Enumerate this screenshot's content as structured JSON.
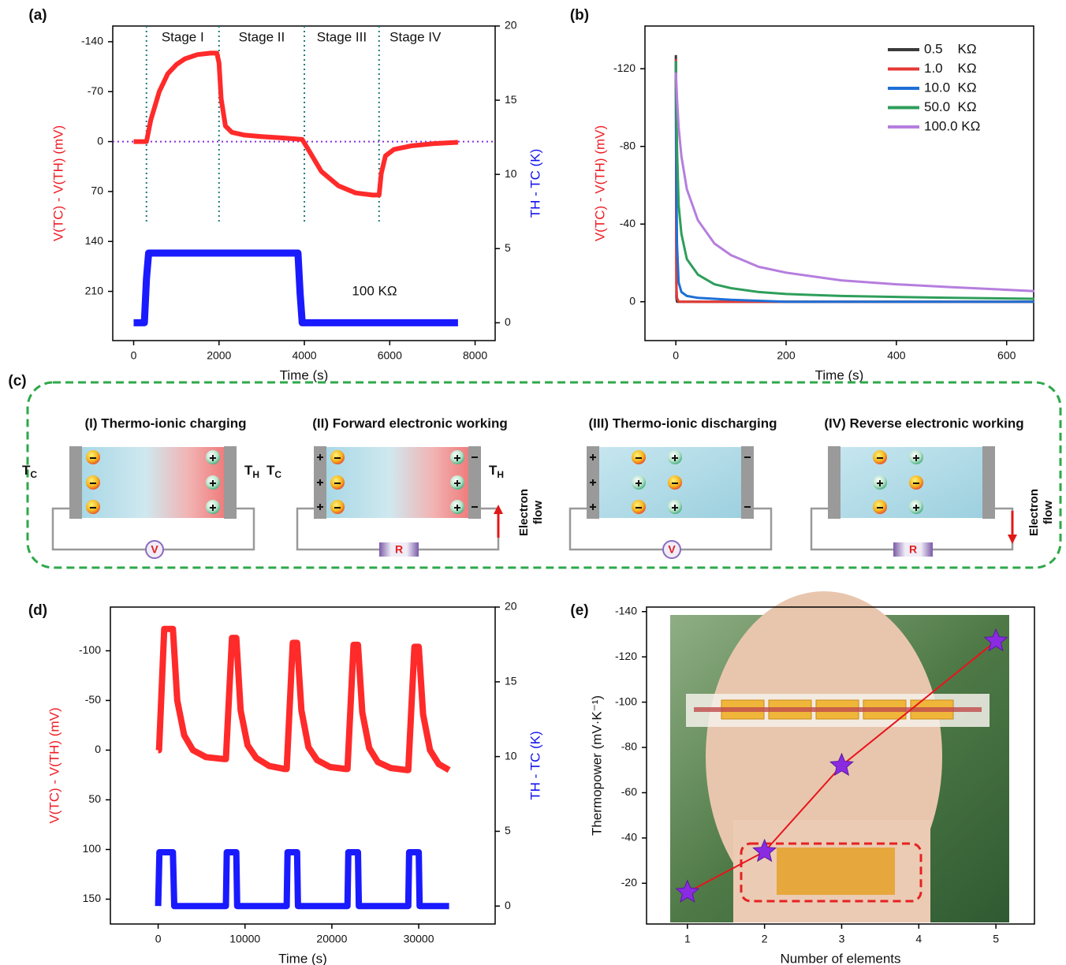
{
  "chart_data": [
    {
      "type": "line",
      "panel_label": "(a)",
      "xlabel": "Time (s)",
      "ylabel": "V(TC) - V(TH) (mV)",
      "y2label": "TH - TC (K)",
      "ylabel_color": "#ee1c25",
      "y2label_color": "#1010ee",
      "xlim": [
        -490,
        8470
      ],
      "xticks": [
        0,
        2000,
        4000,
        6000,
        8000
      ],
      "ylim": [
        -162,
        279
      ],
      "y_inverted": true,
      "yticks": [
        -140,
        -70,
        0,
        70,
        140,
        210
      ],
      "y2lim": [
        -1.2,
        20
      ],
      "y2ticks": [
        0,
        5,
        10,
        15,
        20
      ],
      "reference_line": {
        "y": 0,
        "color": "#8a2be2"
      },
      "stage_lines": [
        300,
        2000,
        4000,
        5750
      ],
      "stage_line_color": "#1e7b7b",
      "stage_labels": [
        "Stage I",
        "Stage II",
        "Stage III",
        "Stage IV"
      ],
      "annotation": "100 KΩ",
      "series": [
        {
          "color": "#ff2a2a",
          "x": [
            0,
            250,
            300,
            400,
            600,
            800,
            1000,
            1200,
            1500,
            1800,
            1950,
            2000,
            2050,
            2150,
            2300,
            2600,
            3000,
            3500,
            3950,
            4100,
            4400,
            4800,
            5200,
            5600,
            5750,
            5800,
            5900,
            6100,
            6500,
            7000,
            7600
          ],
          "values": [
            0,
            0,
            0,
            -30,
            -70,
            -95,
            -108,
            -116,
            -122,
            -124,
            -124,
            -110,
            -60,
            -22,
            -13,
            -9,
            -7,
            -5,
            -3,
            12,
            42,
            62,
            72,
            75,
            75,
            45,
            20,
            11,
            6,
            3,
            1
          ]
        },
        {
          "color": "#1a1aff",
          "axis": "y2",
          "x": [
            0,
            250,
            300,
            350,
            3850,
            3900,
            3950,
            7600
          ],
          "values": [
            0,
            0,
            3,
            4.7,
            4.7,
            2,
            0,
            0
          ]
        }
      ]
    },
    {
      "type": "line",
      "panel_label": "(b)",
      "xlabel": "Time (s)",
      "ylabel": "V(TC) - V(TH) (mV)",
      "ylabel_color": "#ee1c25",
      "xlim": [
        -56,
        649
      ],
      "xticks": [
        0,
        200,
        400,
        600
      ],
      "ylim": [
        -142,
        20
      ],
      "y_inverted": true,
      "yticks": [
        -120,
        -80,
        -40,
        0
      ],
      "legend": "upper right",
      "x": [
        0,
        1,
        2,
        5,
        10,
        20,
        40,
        70,
        100,
        150,
        200,
        300,
        400,
        500,
        650
      ],
      "series": [
        {
          "name": "0.5    KΩ",
          "color": "#3a3a3a",
          "values": [
            -127,
            -2,
            0,
            0,
            0,
            0,
            0,
            0,
            0,
            0,
            0,
            0,
            0,
            0,
            0
          ]
        },
        {
          "name": "1.0    KΩ",
          "color": "#e53935",
          "values": [
            -125,
            -8,
            -2,
            0,
            0,
            0,
            0,
            0,
            0,
            0,
            0,
            0,
            0,
            0,
            0
          ]
        },
        {
          "name": "10.0  KΩ",
          "color": "#1e6fd6",
          "values": [
            -124,
            -60,
            -30,
            -10,
            -5,
            -3,
            -2,
            -1.5,
            -1,
            -0.5,
            0,
            0,
            0,
            0,
            0
          ]
        },
        {
          "name": "50.0  KΩ",
          "color": "#2e9e5b",
          "values": [
            -124,
            -100,
            -80,
            -50,
            -35,
            -22,
            -14,
            -9,
            -7,
            -5,
            -4,
            -3,
            -2.5,
            -2,
            -1.5
          ]
        },
        {
          "name": "100.0 KΩ",
          "color": "#b57ede",
          "values": [
            -118,
            -112,
            -105,
            -90,
            -75,
            -58,
            -42,
            -30,
            -24,
            -18,
            -15,
            -11,
            -9,
            -7.5,
            -5.5
          ]
        }
      ]
    },
    {
      "type": "line",
      "panel_label": "(d)",
      "xlabel": "Time (s)",
      "ylabel": "V(TC) - V(TH) (mV)",
      "y2label": "TH - TC (K)",
      "ylabel_color": "#ee1c25",
      "y2label_color": "#1010ee",
      "xlim": [
        -5500,
        38800
      ],
      "xticks": [
        0,
        10000,
        20000,
        30000
      ],
      "ylim": [
        -144,
        175
      ],
      "y_inverted": true,
      "yticks": [
        -100,
        -50,
        0,
        50,
        100,
        150
      ],
      "y2lim": [
        -1.2,
        20
      ],
      "y2ticks": [
        0,
        5,
        10,
        15,
        20
      ],
      "series": [
        {
          "color": "#ff2a2a",
          "x": [
            0,
            100,
            700,
            1700,
            2200,
            3000,
            4000,
            5500,
            7600,
            7800,
            8500,
            9000,
            9500,
            10300,
            11300,
            12800,
            14600,
            14800,
            15500,
            16000,
            16500,
            17300,
            18300,
            19800,
            21600,
            21800,
            22500,
            23000,
            23500,
            24300,
            25300,
            26800,
            28600,
            28800,
            29500,
            30000,
            30500,
            31300,
            32300,
            33500
          ],
          "values": [
            0,
            0,
            -122,
            -122,
            -50,
            -15,
            0,
            7,
            9,
            9,
            -113,
            -113,
            -40,
            -5,
            8,
            16,
            19,
            19,
            -108,
            -108,
            -40,
            -3,
            10,
            17,
            19,
            19,
            -106,
            -106,
            -38,
            -2,
            12,
            18,
            20,
            20,
            -104,
            -104,
            -36,
            0,
            14,
            20
          ]
        },
        {
          "color": "#1a1aff",
          "axis": "y2",
          "x": [
            0,
            150,
            1700,
            1850,
            7800,
            7900,
            9000,
            9100,
            14800,
            14900,
            16000,
            16100,
            21800,
            21900,
            23000,
            23100,
            28800,
            28900,
            30000,
            30100,
            33500
          ],
          "values": [
            0,
            3.6,
            3.6,
            0,
            0,
            3.6,
            3.6,
            0,
            0,
            3.6,
            3.6,
            0,
            0,
            3.6,
            3.6,
            0,
            0,
            3.6,
            3.6,
            0,
            0
          ]
        }
      ]
    },
    {
      "type": "scatter",
      "panel_label": "(e)",
      "xlabel": "Number of elements",
      "ylabel": "Thermopower (mV·K⁻¹)",
      "xlim": [
        0.47,
        5.5
      ],
      "xticks": [
        1,
        2,
        3,
        4,
        5
      ],
      "ylim": [
        -142,
        -2
      ],
      "y_inverted": true,
      "yticks": [
        -140,
        -120,
        -100,
        -80,
        -60,
        -40,
        -20
      ],
      "x": [
        1,
        2,
        3,
        5
      ],
      "values": [
        -16,
        -34,
        -72,
        -127
      ],
      "color": "#8a2be2",
      "line_color": "#e8141c"
    }
  ],
  "diagram": {
    "panel_label": "(c)",
    "stages": [
      {
        "title": "(I) Thermo-ionic charging",
        "meter": "V"
      },
      {
        "title": "(II) Forward electronic working",
        "meter": "R"
      },
      {
        "title": "(III) Thermo-ionic discharging",
        "meter": "V"
      },
      {
        "title": "(IV) Reverse electronic working",
        "meter": "R"
      }
    ],
    "cold_terminal": {
      "main": "T",
      "sub": "C"
    },
    "hot_terminal": {
      "main": "T",
      "sub": "H"
    },
    "electron_flow": [
      "Electron",
      "flow"
    ]
  }
}
